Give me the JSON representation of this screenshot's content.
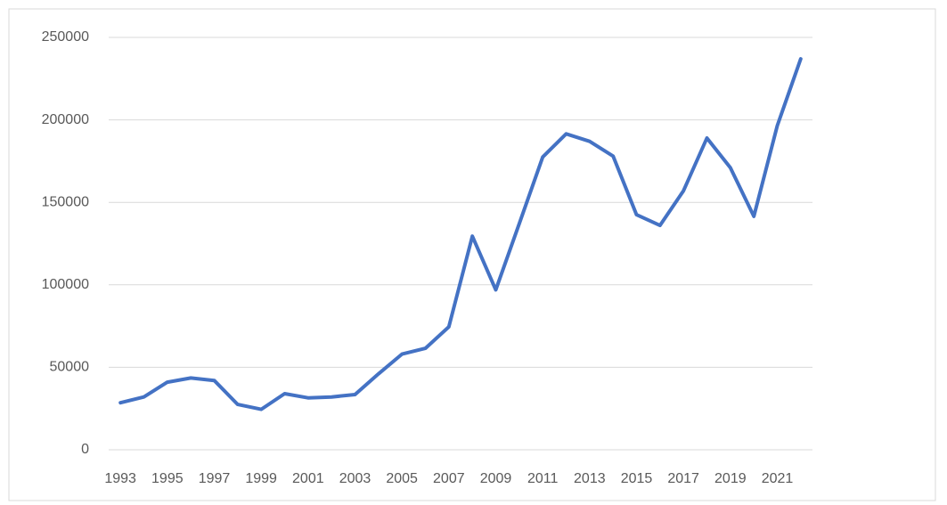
{
  "chart_data": {
    "type": "line",
    "categories": [
      "1993",
      null,
      "1995",
      null,
      "1997",
      null,
      "1999",
      null,
      "2001",
      null,
      "2003",
      null,
      "2005",
      null,
      "2007",
      null,
      "2009",
      null,
      "2011",
      null,
      "2013",
      null,
      "2015",
      null,
      "2017",
      null,
      "2019",
      null,
      "2021",
      null
    ],
    "series": [
      {
        "name": null,
        "color": "#4472c4",
        "values": [
          28500,
          32000,
          41000,
          43500,
          42000,
          27500,
          24500,
          34000,
          31500,
          32000,
          33500,
          46000,
          58000,
          61500,
          74500,
          129500,
          97000,
          137000,
          177500,
          191500,
          187000,
          178000,
          142500,
          136000,
          157000,
          189000,
          171000,
          141500,
          196500,
          237000
        ]
      }
    ],
    "ylim": [
      0,
      250000
    ],
    "yticks": [
      0,
      50000,
      100000,
      150000,
      200000,
      250000
    ],
    "grid": true
  }
}
